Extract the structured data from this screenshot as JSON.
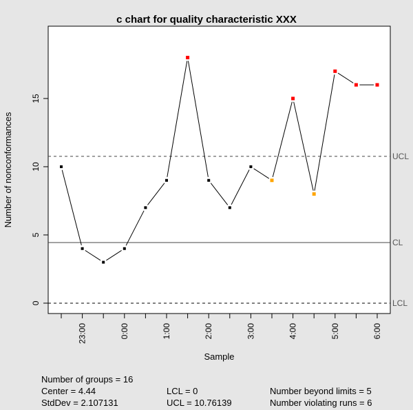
{
  "chart_data": {
    "type": "line",
    "title": "c chart for quality characteristic XXX",
    "xlabel": "Sample",
    "ylabel": "Number of nonconformances",
    "ylim": [
      -0.76,
      20.3
    ],
    "yticks": [
      0,
      5,
      10,
      15
    ],
    "x": [
      1,
      2,
      3,
      4,
      5,
      6,
      7,
      8,
      9,
      10,
      11,
      12,
      13,
      14,
      15,
      16
    ],
    "x_tick_labels": [
      {
        "x": 2,
        "label": "23:00"
      },
      {
        "x": 4,
        "label": "0:00"
      },
      {
        "x": 6,
        "label": "1:00"
      },
      {
        "x": 8,
        "label": "2:00"
      },
      {
        "x": 10,
        "label": "3:00"
      },
      {
        "x": 12,
        "label": "4:00"
      },
      {
        "x": 14,
        "label": "5:00"
      },
      {
        "x": 16,
        "label": "6:00"
      }
    ],
    "values": [
      10,
      4,
      3,
      4,
      7,
      9,
      18,
      9,
      7,
      10,
      9,
      15,
      8,
      17,
      16,
      16
    ],
    "point_status": [
      "ok",
      "ok",
      "ok",
      "ok",
      "ok",
      "ok",
      "beyond",
      "ok",
      "ok",
      "ok",
      "run",
      "beyond",
      "run",
      "beyond",
      "beyond",
      "beyond"
    ],
    "limits": [
      {
        "name": "UCL",
        "value": 10.76139,
        "style": "dashed"
      },
      {
        "name": "CL",
        "value": 4.44,
        "style": "solid"
      },
      {
        "name": "LCL",
        "value": 0,
        "style": "dashed"
      }
    ],
    "colors": {
      "ok": "#000000",
      "beyond": "#ff0000",
      "run": "#ffa500",
      "limit_label": "#555555"
    },
    "grid": false
  },
  "stats": {
    "groups": "Number of groups = 16",
    "center": "Center = 4.44",
    "stddev": "StdDev = 2.107131",
    "lcl": "LCL = 0",
    "ucl": "UCL = 10.76139",
    "beyond": "Number beyond limits = 5",
    "runs": "Number violating runs = 6"
  }
}
